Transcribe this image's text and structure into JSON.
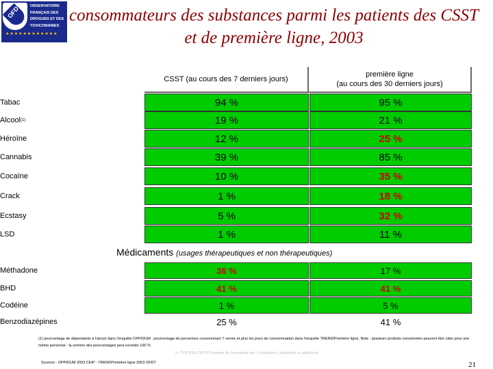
{
  "logo": {
    "mark": "OFDT",
    "lines": [
      "OBSERVATOIRE",
      "FRANÇAIS DES",
      "DROGUES ET DES",
      "TOXICOMANIES"
    ],
    "stars": "★★★★★★★★★★★★"
  },
  "title": "consommateurs des substances parmi les patients des CSST et de première ligne, 2003",
  "header": {
    "col1": "CSST (au cours des 7 derniers jours)",
    "col2_line1": "première ligne",
    "col2_line2": "(au cours des 30 derniers jours)"
  },
  "rows": [
    {
      "label": "Tabac",
      "csst": "94 %",
      "premiere": "95 %"
    },
    {
      "label": "Alcool",
      "label_sup": "(1)",
      "csst": "19 %",
      "premiere": "21 %"
    },
    {
      "label": "Héroïne",
      "csst": "12 %",
      "premiere": "25 %"
    },
    {
      "label": "Cannabis",
      "csst": "39 %",
      "premiere": "85 %"
    },
    {
      "label": "Cocaïne",
      "csst": "10 %",
      "premiere": "35 %"
    },
    {
      "label": "Crack",
      "csst": "1 %",
      "premiere": "18 %"
    },
    {
      "label": "Ecstasy",
      "csst": "5 %",
      "premiere": "32 %"
    },
    {
      "label": "LSD",
      "csst": "1 %",
      "premiere": "11 %"
    }
  ],
  "medicaments": {
    "heading": "Médicaments",
    "subheading": "(usages thérapeutiques et non thérapeutiques)",
    "rows": [
      {
        "label": "Méthadone",
        "csst": "36 %",
        "premiere": "17 %"
      },
      {
        "label": "BHD",
        "csst": "41 %",
        "premiere": "41 %"
      },
      {
        "label": "Codéine",
        "csst": "1 %",
        "premiere": "5 %"
      },
      {
        "label": "Benzodiazépines",
        "csst": "25 %",
        "premiere": "41 %"
      }
    ]
  },
  "footnote": "(1) pourcentage de dépendants à l'alcool dans l'enquête OPPIDUM : pourcentage de personnes consommant 7 verres et plus les jours de consommation dans l'enquête TREND/Première ligne, Note : plusieurs produits consommés peuvent être cités pour une même personne : la somme des pourcentages peut excéder 100 %",
  "footer_center": "A. TOUFIK OFDT/Journée de formation des 3 frontières, Maizeroit et addiction",
  "sources": "Sources : OPPIDUM 2003 CEIP - TRENDPremière ligne 2003 OFDT",
  "page_number": "21",
  "colors": {
    "title": "#8b0000",
    "green": "#00cc00",
    "red": "#cc0000",
    "logo": "#1a2a8c"
  }
}
